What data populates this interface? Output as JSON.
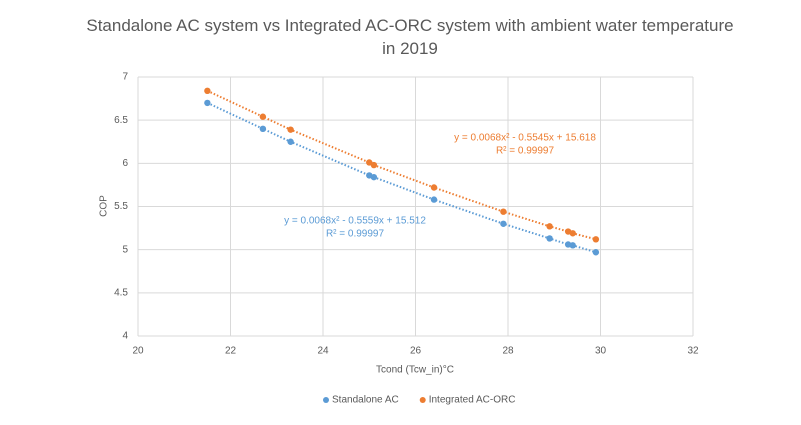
{
  "chart_data": {
    "type": "scatter",
    "title": "Standalone AC system vs Integrated AC-ORC system with ambient water temperature in 2019",
    "x_label": "Tcond (Tcw_in)°C",
    "y_label": "COP",
    "x": [
      21.5,
      22.7,
      23.3,
      25.0,
      25.1,
      26.4,
      27.9,
      28.9,
      29.3,
      29.4,
      29.9
    ],
    "series": [
      {
        "name": "Standalone AC",
        "color": "#5b9bd5",
        "values": [
          6.7,
          6.4,
          6.25,
          5.86,
          5.84,
          5.58,
          5.3,
          5.13,
          5.06,
          5.05,
          4.97
        ]
      },
      {
        "name": "Integrated AC-ORC",
        "color": "#ed7d31",
        "values": [
          6.84,
          6.54,
          6.39,
          6.01,
          5.98,
          5.72,
          5.44,
          5.27,
          5.21,
          5.19,
          5.12
        ]
      }
    ],
    "annotations": [
      {
        "equation": "y = 0.0068x² - 0.5545x + 15.618",
        "r2": "R² = 0.99997",
        "color": "#ed7d31"
      },
      {
        "equation": "y = 0.0068x² - 0.5559x + 15.512",
        "r2": "R² = 0.99997",
        "color": "#5b9bd5"
      }
    ],
    "xlim": [
      20,
      32
    ],
    "xticks": [
      20,
      22,
      24,
      26,
      28,
      30,
      32
    ],
    "ylim": [
      4,
      7
    ],
    "yticks": [
      4,
      4.5,
      5,
      5.5,
      6,
      6.5,
      7
    ],
    "grid": true,
    "legend": "bottom"
  }
}
